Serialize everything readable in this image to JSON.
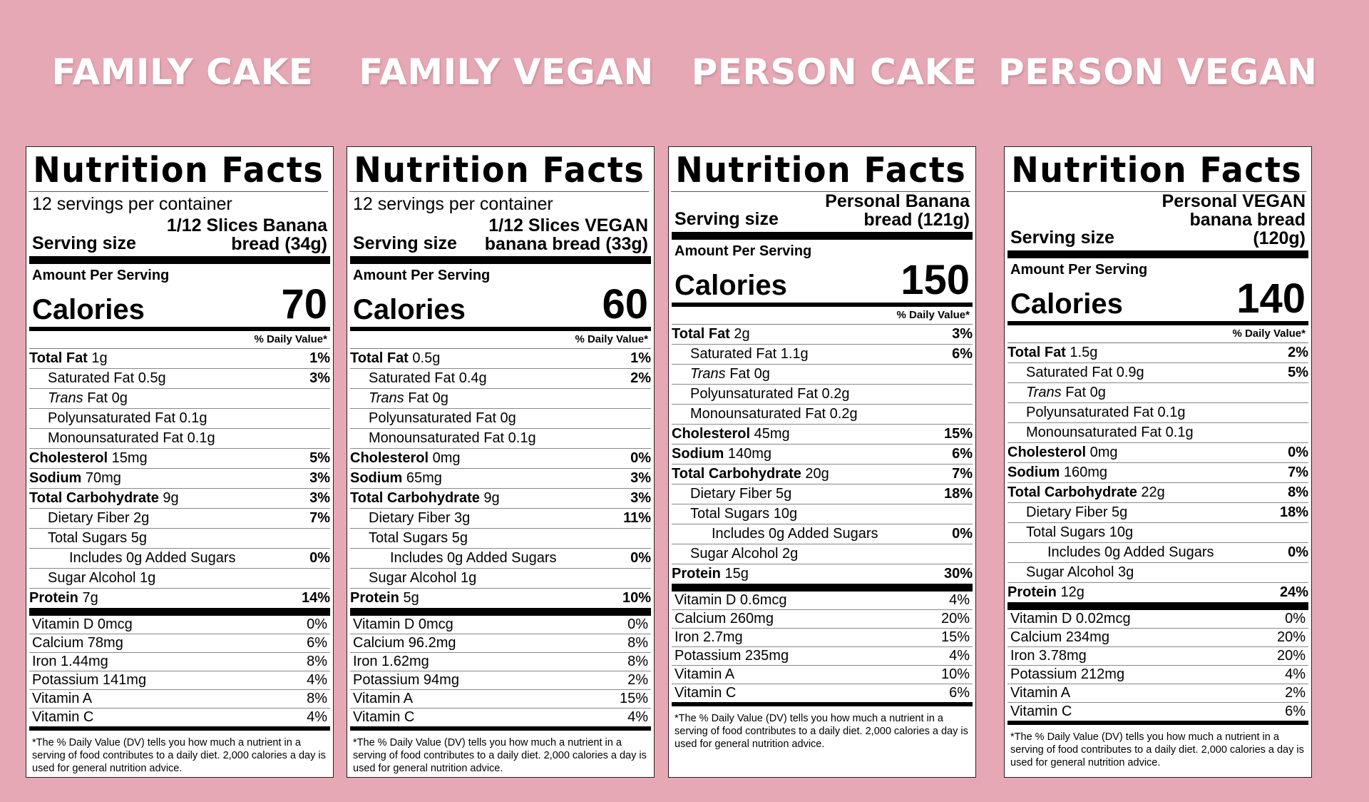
{
  "page": {
    "background_color": "#E6A8B5",
    "heading_color": "#ffffff"
  },
  "labels": [
    {
      "heading": "FAMILY CAKE",
      "title": "Nutrition Facts",
      "servings_per_container": "12 servings per container",
      "serving_size_label": "Serving size",
      "serving_size_value": "1/12 Slices Banana\nbread  (34g)",
      "amount_per_serving": "Amount Per Serving",
      "calories_label": "Calories",
      "calories": "70",
      "dv_header": "% Daily Value*",
      "nutrients": [
        {
          "bold": "Total Fat",
          "italic": "",
          "text": " 1g",
          "pct": "1%",
          "indent": 0
        },
        {
          "bold": "",
          "italic": "",
          "text": "Saturated Fat 0.5g",
          "pct": "3%",
          "indent": 1
        },
        {
          "bold": "",
          "italic": "Trans",
          "text": " Fat 0g",
          "pct": "",
          "indent": 1
        },
        {
          "bold": "",
          "italic": "",
          "text": "Polyunsaturated Fat 0.1g",
          "pct": "",
          "indent": 1
        },
        {
          "bold": "",
          "italic": "",
          "text": "Monounsaturated Fat 0.1g",
          "pct": "",
          "indent": 1
        },
        {
          "bold": "Cholesterol",
          "italic": "",
          "text": " 15mg",
          "pct": "5%",
          "indent": 0
        },
        {
          "bold": "Sodium",
          "italic": "",
          "text": " 70mg",
          "pct": "3%",
          "indent": 0
        },
        {
          "bold": "Total Carbohydrate",
          "italic": "",
          "text": " 9g",
          "pct": "3%",
          "indent": 0
        },
        {
          "bold": "",
          "italic": "",
          "text": "Dietary Fiber 2g",
          "pct": "7%",
          "indent": 1
        },
        {
          "bold": "",
          "italic": "",
          "text": "Total Sugars 5g",
          "pct": "",
          "indent": 1
        },
        {
          "bold": "",
          "italic": "",
          "text": "Includes 0g Added Sugars",
          "pct": "0%",
          "indent": 2
        },
        {
          "bold": "",
          "italic": "",
          "text": "Sugar Alcohol 1g",
          "pct": "",
          "indent": 1
        },
        {
          "bold": "Protein",
          "italic": "",
          "text": " 7g",
          "pct": "14%",
          "indent": 0
        }
      ],
      "vitamins": [
        {
          "name": "Vitamin D 0mcg",
          "pct": "0%"
        },
        {
          "name": "Calcium 78mg",
          "pct": "6%"
        },
        {
          "name": "Iron 1.44mg",
          "pct": "8%"
        },
        {
          "name": "Potassium 141mg",
          "pct": "4%"
        },
        {
          "name": "Vitamin A",
          "pct": "8%"
        },
        {
          "name": "Vitamin C",
          "pct": "4%"
        }
      ],
      "footnote": "*The % Daily Value (DV) tells you how much a nutrient in a serving of food contributes to a daily diet. 2,000 calories a day is used for general nutrition advice."
    },
    {
      "heading": "FAMILY VEGAN",
      "title": "Nutrition Facts",
      "servings_per_container": "12 servings per container",
      "serving_size_label": "Serving size",
      "serving_size_value": "1/12 Slices VEGAN\nbanana bread  (33g)",
      "amount_per_serving": "Amount Per Serving",
      "calories_label": "Calories",
      "calories": "60",
      "dv_header": "% Daily Value*",
      "nutrients": [
        {
          "bold": "Total Fat",
          "italic": "",
          "text": " 0.5g",
          "pct": "1%",
          "indent": 0
        },
        {
          "bold": "",
          "italic": "",
          "text": "Saturated Fat 0.4g",
          "pct": "2%",
          "indent": 1
        },
        {
          "bold": "",
          "italic": "Trans",
          "text": " Fat 0g",
          "pct": "",
          "indent": 1
        },
        {
          "bold": "",
          "italic": "",
          "text": "Polyunsaturated Fat 0g",
          "pct": "",
          "indent": 1
        },
        {
          "bold": "",
          "italic": "",
          "text": "Monounsaturated Fat 0.1g",
          "pct": "",
          "indent": 1
        },
        {
          "bold": "Cholesterol",
          "italic": "",
          "text": " 0mg",
          "pct": "0%",
          "indent": 0
        },
        {
          "bold": "Sodium",
          "italic": "",
          "text": " 65mg",
          "pct": "3%",
          "indent": 0
        },
        {
          "bold": "Total Carbohydrate",
          "italic": "",
          "text": " 9g",
          "pct": "3%",
          "indent": 0
        },
        {
          "bold": "",
          "italic": "",
          "text": "Dietary Fiber 3g",
          "pct": "11%",
          "indent": 1
        },
        {
          "bold": "",
          "italic": "",
          "text": "Total Sugars 5g",
          "pct": "",
          "indent": 1
        },
        {
          "bold": "",
          "italic": "",
          "text": "Includes 0g Added Sugars",
          "pct": "0%",
          "indent": 2
        },
        {
          "bold": "",
          "italic": "",
          "text": "Sugar Alcohol 1g",
          "pct": "",
          "indent": 1
        },
        {
          "bold": "Protein",
          "italic": "",
          "text": " 5g",
          "pct": "10%",
          "indent": 0
        }
      ],
      "vitamins": [
        {
          "name": "Vitamin D 0mcg",
          "pct": "0%"
        },
        {
          "name": "Calcium 96.2mg",
          "pct": "8%"
        },
        {
          "name": "Iron 1.62mg",
          "pct": "8%"
        },
        {
          "name": "Potassium 94mg",
          "pct": "2%"
        },
        {
          "name": "Vitamin A",
          "pct": "15%"
        },
        {
          "name": "Vitamin C",
          "pct": "4%"
        }
      ],
      "footnote": "*The % Daily Value (DV) tells you how much a nutrient in a serving of food contributes to a daily diet. 2,000 calories a day is used for general nutrition advice."
    },
    {
      "heading": "PERSON CAKE",
      "title": "Nutrition Facts",
      "servings_per_container": "",
      "serving_size_label": "Serving size",
      "serving_size_value": "Personal Banana\nbread  (121g)",
      "amount_per_serving": "Amount Per Serving",
      "calories_label": "Calories",
      "calories": "150",
      "dv_header": "% Daily Value*",
      "nutrients": [
        {
          "bold": "Total Fat",
          "italic": "",
          "text": " 2g",
          "pct": "3%",
          "indent": 0
        },
        {
          "bold": "",
          "italic": "",
          "text": "Saturated Fat 1.1g",
          "pct": "6%",
          "indent": 1
        },
        {
          "bold": "",
          "italic": "Trans",
          "text": " Fat 0g",
          "pct": "",
          "indent": 1
        },
        {
          "bold": "",
          "italic": "",
          "text": "Polyunsaturated Fat 0.2g",
          "pct": "",
          "indent": 1
        },
        {
          "bold": "",
          "italic": "",
          "text": "Monounsaturated Fat 0.2g",
          "pct": "",
          "indent": 1
        },
        {
          "bold": "Cholesterol",
          "italic": "",
          "text": " 45mg",
          "pct": "15%",
          "indent": 0
        },
        {
          "bold": "Sodium",
          "italic": "",
          "text": " 140mg",
          "pct": "6%",
          "indent": 0
        },
        {
          "bold": "Total Carbohydrate",
          "italic": "",
          "text": " 20g",
          "pct": "7%",
          "indent": 0
        },
        {
          "bold": "",
          "italic": "",
          "text": "Dietary Fiber 5g",
          "pct": "18%",
          "indent": 1
        },
        {
          "bold": "",
          "italic": "",
          "text": "Total Sugars 10g",
          "pct": "",
          "indent": 1
        },
        {
          "bold": "",
          "italic": "",
          "text": "Includes 0g Added Sugars",
          "pct": "0%",
          "indent": 2
        },
        {
          "bold": "",
          "italic": "",
          "text": "Sugar Alcohol 2g",
          "pct": "",
          "indent": 1
        },
        {
          "bold": "Protein",
          "italic": "",
          "text": " 15g",
          "pct": "30%",
          "indent": 0
        }
      ],
      "vitamins": [
        {
          "name": "Vitamin D 0.6mcg",
          "pct": "4%"
        },
        {
          "name": "Calcium 260mg",
          "pct": "20%"
        },
        {
          "name": "Iron 2.7mg",
          "pct": "15%"
        },
        {
          "name": "Potassium 235mg",
          "pct": "4%"
        },
        {
          "name": "Vitamin A",
          "pct": "10%"
        },
        {
          "name": "Vitamin C",
          "pct": "6%"
        }
      ],
      "footnote": "*The % Daily Value (DV) tells you how much a nutrient in a serving of food contributes to a daily diet. 2,000 calories a day is used for general nutrition advice."
    },
    {
      "heading": "PERSON VEGAN",
      "title": "Nutrition Facts",
      "servings_per_container": "",
      "serving_size_label": "Serving size",
      "serving_size_value": "Personal VEGAN\nbanana bread\n(120g)",
      "amount_per_serving": "Amount Per Serving",
      "calories_label": "Calories",
      "calories": "140",
      "dv_header": "% Daily Value*",
      "nutrients": [
        {
          "bold": "Total Fat",
          "italic": "",
          "text": " 1.5g",
          "pct": "2%",
          "indent": 0
        },
        {
          "bold": "",
          "italic": "",
          "text": "Saturated Fat 0.9g",
          "pct": "5%",
          "indent": 1
        },
        {
          "bold": "",
          "italic": "Trans",
          "text": " Fat 0g",
          "pct": "",
          "indent": 1
        },
        {
          "bold": "",
          "italic": "",
          "text": "Polyunsaturated Fat 0.1g",
          "pct": "",
          "indent": 1
        },
        {
          "bold": "",
          "italic": "",
          "text": "Monounsaturated Fat 0.1g",
          "pct": "",
          "indent": 1
        },
        {
          "bold": "Cholesterol",
          "italic": "",
          "text": " 0mg",
          "pct": "0%",
          "indent": 0
        },
        {
          "bold": "Sodium",
          "italic": "",
          "text": " 160mg",
          "pct": "7%",
          "indent": 0
        },
        {
          "bold": "Total Carbohydrate",
          "italic": "",
          "text": " 22g",
          "pct": "8%",
          "indent": 0
        },
        {
          "bold": "",
          "italic": "",
          "text": "Dietary Fiber 5g",
          "pct": "18%",
          "indent": 1
        },
        {
          "bold": "",
          "italic": "",
          "text": "Total Sugars 10g",
          "pct": "",
          "indent": 1
        },
        {
          "bold": "",
          "italic": "",
          "text": "Includes 0g Added Sugars",
          "pct": "0%",
          "indent": 2
        },
        {
          "bold": "",
          "italic": "",
          "text": "Sugar Alcohol 3g",
          "pct": "",
          "indent": 1
        },
        {
          "bold": "Protein",
          "italic": "",
          "text": " 12g",
          "pct": "24%",
          "indent": 0
        }
      ],
      "vitamins": [
        {
          "name": "Vitamin D 0.02mcg",
          "pct": "0%"
        },
        {
          "name": "Calcium 234mg",
          "pct": "20%"
        },
        {
          "name": "Iron 3.78mg",
          "pct": "20%"
        },
        {
          "name": "Potassium 212mg",
          "pct": "4%"
        },
        {
          "name": "Vitamin A",
          "pct": "2%"
        },
        {
          "name": "Vitamin C",
          "pct": "6%"
        }
      ],
      "footnote": "*The % Daily Value (DV) tells you how much a nutrient in a serving of food contributes to a daily diet. 2,000 calories a day is used for general nutrition advice."
    }
  ]
}
